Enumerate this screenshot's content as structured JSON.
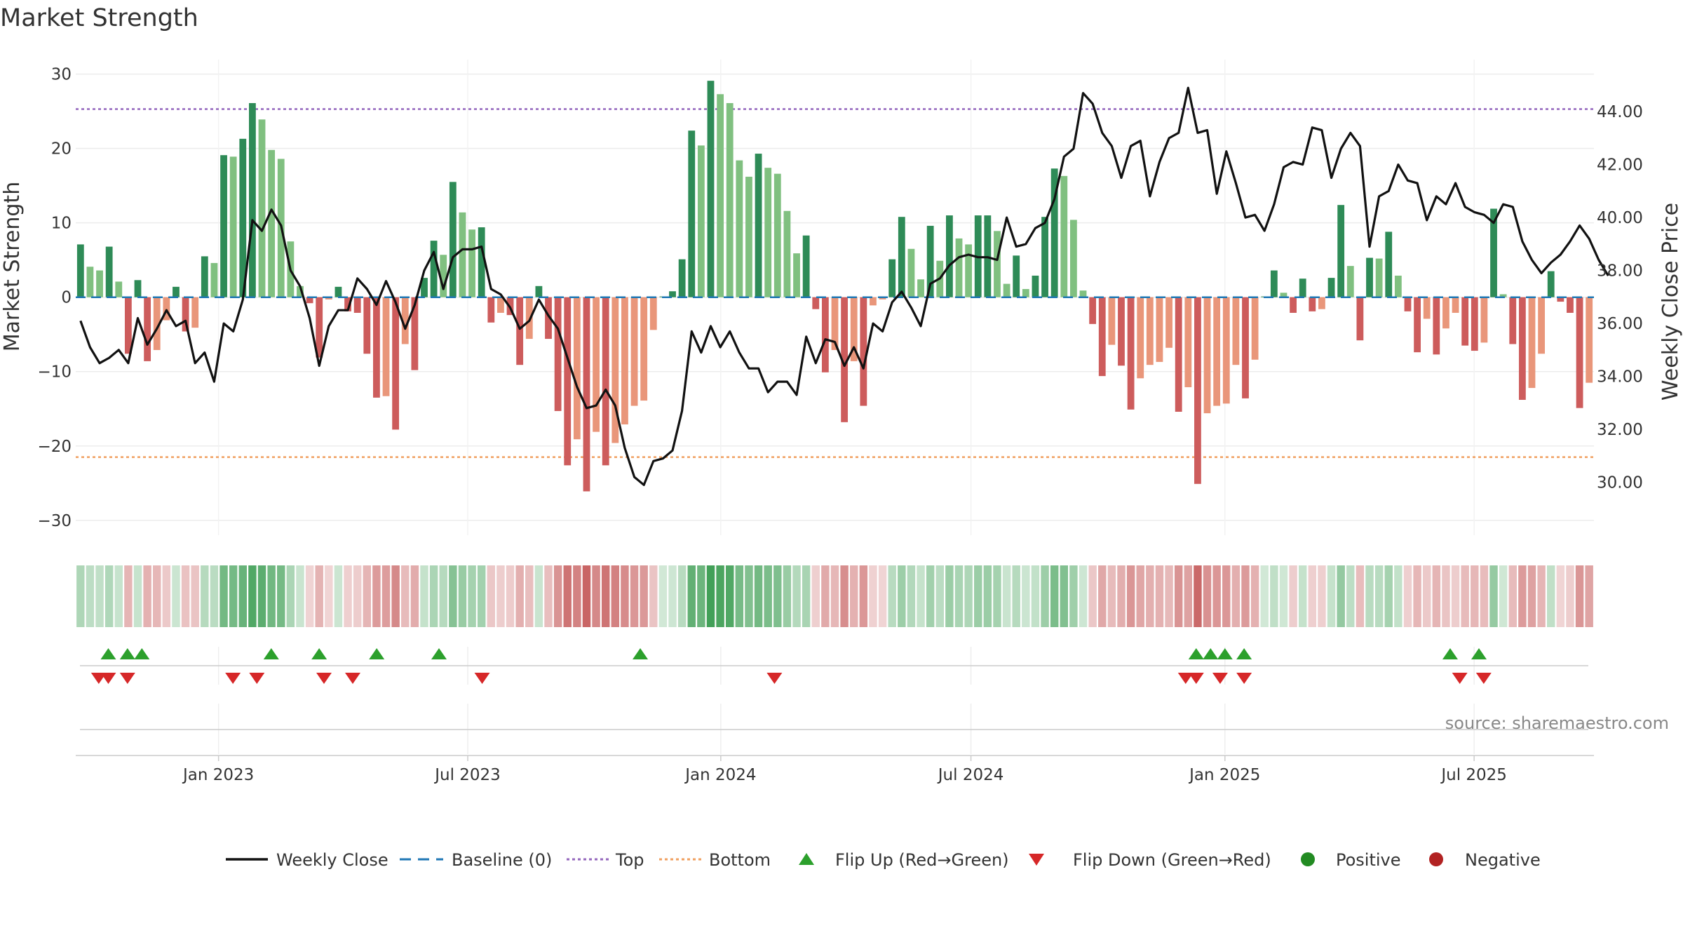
{
  "chart_data": {
    "type": "bar",
    "title": "Market Strength",
    "ylabel": "Market Strength",
    "y2label": "Weekly Close Price",
    "ylim": [
      -32,
      31
    ],
    "y2lim": [
      28.0,
      45.7
    ],
    "yticks": [
      -30,
      -20,
      -10,
      0,
      10,
      20,
      30
    ],
    "ytick_labels": [
      "−30",
      "−20",
      "−10",
      "0",
      "10",
      "20",
      "30"
    ],
    "y2ticks": [
      30,
      32,
      34,
      36,
      38,
      40,
      42,
      44
    ],
    "y2tick_labels": [
      "30.00",
      "32.00",
      "34.00",
      "36.00",
      "38.00",
      "40.00",
      "42.00",
      "44.00"
    ],
    "x_start_week": -14.9,
    "x_end_week": 143.5,
    "date_ticks": [
      {
        "label": "Jan 2023",
        "week": 0
      },
      {
        "label": "Jul 2023",
        "week": 26
      },
      {
        "label": "Jan 2024",
        "week": 52.4
      },
      {
        "label": "Jul 2024",
        "week": 78.5
      },
      {
        "label": "Jan 2025",
        "week": 105
      },
      {
        "label": "Jul 2025",
        "week": 131
      }
    ],
    "top_level": 25.3,
    "bottom_level": -21.5,
    "strength": [
      7.1,
      4.1,
      3.6,
      6.8,
      2.1,
      -7.6,
      2.3,
      -8.6,
      -7.1,
      -3.1,
      1.4,
      -4.6,
      -4.1,
      5.5,
      4.6,
      19.1,
      18.9,
      21.3,
      26.1,
      23.9,
      19.8,
      18.6,
      7.5,
      1.5,
      -0.8,
      -8.1,
      -0.3,
      1.4,
      -1.9,
      -2.1,
      -7.6,
      -13.5,
      -13.3,
      -17.8,
      -6.3,
      -9.8,
      2.6,
      7.6,
      5.7,
      15.5,
      11.4,
      9.1,
      9.4,
      -3.4,
      -2.1,
      -2.4,
      -9.1,
      -5.6,
      1.5,
      -5.6,
      -15.3,
      -22.6,
      -19.1,
      -26.1,
      -18.1,
      -22.6,
      -19.6,
      -17.1,
      -14.6,
      -13.9,
      -4.4,
      0.1,
      0.8,
      5.1,
      22.4,
      20.4,
      29.1,
      27.3,
      26.1,
      18.4,
      16.2,
      19.3,
      17.4,
      16.6,
      11.6,
      5.9,
      8.3,
      -1.6,
      -10.1,
      -7.1,
      -16.8,
      -8.6,
      -14.6,
      -1.1,
      -0.3,
      5.1,
      10.8,
      6.5,
      2.4,
      9.6,
      4.9,
      11.0,
      7.9,
      7.1,
      11.0,
      11.0,
      8.9,
      1.8,
      5.6,
      1.1,
      2.9,
      10.8,
      17.3,
      16.3,
      10.4,
      0.9,
      -3.6,
      -10.6,
      -6.4,
      -9.2,
      -15.1,
      -10.9,
      -9.1,
      -8.7,
      -6.8,
      -15.4,
      -12.1,
      -25.1,
      -15.6,
      -14.6,
      -14.3,
      -9.1,
      -13.6,
      -8.4,
      0.1,
      3.6,
      0.6,
      -2.1,
      2.5,
      -1.9,
      -1.6,
      2.6,
      12.4,
      4.2,
      -5.8,
      5.3,
      5.2,
      8.8,
      2.9,
      -1.9,
      -7.4,
      -2.9,
      -7.7,
      -4.2,
      -2.1,
      -6.5,
      -7.2,
      -6.1,
      11.9,
      0.4,
      -6.3,
      -13.8,
      -12.2,
      -7.6,
      3.5,
      -0.6,
      -2.1,
      -14.9,
      -11.5
    ],
    "weekly_close": [
      36.1,
      35.1,
      34.5,
      34.7,
      35.0,
      34.5,
      36.2,
      35.2,
      35.8,
      36.5,
      35.9,
      36.1,
      34.5,
      34.9,
      33.8,
      36.0,
      35.7,
      36.9,
      39.9,
      39.5,
      40.3,
      39.7,
      38.0,
      37.4,
      36.2,
      34.4,
      35.9,
      36.5,
      36.5,
      37.7,
      37.3,
      36.7,
      37.6,
      36.8,
      35.8,
      36.7,
      38.0,
      38.7,
      37.3,
      38.5,
      38.8,
      38.8,
      38.9,
      37.3,
      37.1,
      36.6,
      35.8,
      36.1,
      36.9,
      36.3,
      35.8,
      34.7,
      33.6,
      32.8,
      32.9,
      33.5,
      32.9,
      31.3,
      30.2,
      29.9,
      30.8,
      30.9,
      31.2,
      32.7,
      35.7,
      34.9,
      35.9,
      35.1,
      35.7,
      34.9,
      34.3,
      34.3,
      33.4,
      33.8,
      33.8,
      33.3,
      35.5,
      34.5,
      35.4,
      35.3,
      34.4,
      35.1,
      34.3,
      36.0,
      35.7,
      36.8,
      37.2,
      36.6,
      35.9,
      37.5,
      37.7,
      38.2,
      38.5,
      38.6,
      38.5,
      38.5,
      38.4,
      40.0,
      38.9,
      39.0,
      39.6,
      39.8,
      40.7,
      42.3,
      42.6,
      44.7,
      44.3,
      43.2,
      42.7,
      41.5,
      42.7,
      42.9,
      40.8,
      42.1,
      43.0,
      43.2,
      44.9,
      43.2,
      43.3,
      40.9,
      42.5,
      41.3,
      40.0,
      40.1,
      39.5,
      40.5,
      41.9,
      42.1,
      42.0,
      43.4,
      43.3,
      41.5,
      42.6,
      43.2,
      42.7,
      38.9,
      40.8,
      41.0,
      42.0,
      41.4,
      41.3,
      39.9,
      40.8,
      40.5,
      41.3,
      40.4,
      40.2,
      40.1,
      39.8,
      40.5,
      40.4,
      39.1,
      38.4,
      37.9,
      38.3,
      38.6,
      39.1,
      39.7,
      39.2,
      38.4,
      37.8
    ]
  },
  "flip_up_weeks": [
    -11.5,
    -9.5,
    -8,
    5.5,
    10.5,
    16.5,
    23,
    44,
    102,
    103.5,
    105,
    107,
    128.5,
    131.5
  ],
  "flip_down_weeks": [
    -12.5,
    -11.5,
    -9.5,
    1.5,
    4,
    11,
    14,
    27.5,
    58,
    100.9,
    102,
    104.5,
    107,
    129.5,
    132
  ],
  "legend": [
    {
      "label": "Weekly Close",
      "kind": "line",
      "color": "#111111"
    },
    {
      "label": "Baseline (0)",
      "kind": "dash",
      "color": "#1f77b4"
    },
    {
      "label": "Top",
      "kind": "dot",
      "color": "#9467bd"
    },
    {
      "label": "Bottom",
      "kind": "dot",
      "color": "#f0a060"
    },
    {
      "label": "Flip Up (Red→Green)",
      "kind": "tri-up",
      "color": "#2ca02c"
    },
    {
      "label": "Flip Down (Green→Red)",
      "kind": "tri-down",
      "color": "#d62728"
    },
    {
      "label": "Positive",
      "kind": "circle",
      "color": "#228b22"
    },
    {
      "label": "Negative",
      "kind": "circle",
      "color": "#b22222"
    }
  ],
  "source_text": "source: sharemaestro.com",
  "colors": {
    "pos_strong": "#2e8b57",
    "pos_light": "#80c080",
    "neg_strong": "#cd5c5c",
    "neg_light": "#e9967a"
  }
}
